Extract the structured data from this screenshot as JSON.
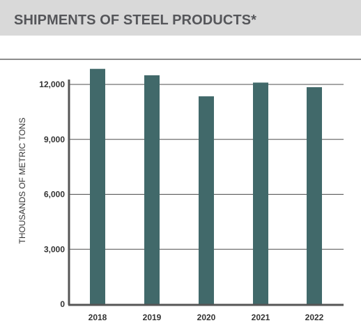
{
  "header": {
    "title": "SHIPMENTS OF STEEL PRODUCTS*"
  },
  "chart_data": {
    "type": "bar",
    "title": "SHIPMENTS OF STEEL PRODUCTS*",
    "xlabel": "",
    "ylabel": "THOUSANDS OF METRIC TONS",
    "categories": [
      "2018",
      "2019",
      "2020",
      "2021",
      "2022"
    ],
    "values": [
      12850,
      12500,
      11350,
      12100,
      11850
    ],
    "ylim": [
      0,
      12000
    ],
    "yticks": [
      0,
      3000,
      6000,
      9000,
      12000
    ],
    "ytick_labels": [
      "0",
      "3,000",
      "6,000",
      "9,000",
      "12,000"
    ],
    "grid": true,
    "colors": {
      "bar": "#41696a",
      "grid": "#4d4d4d",
      "axis": "#555555",
      "text": "#333333",
      "title_band": "#d9d9d9",
      "title_text": "#55565a"
    }
  }
}
